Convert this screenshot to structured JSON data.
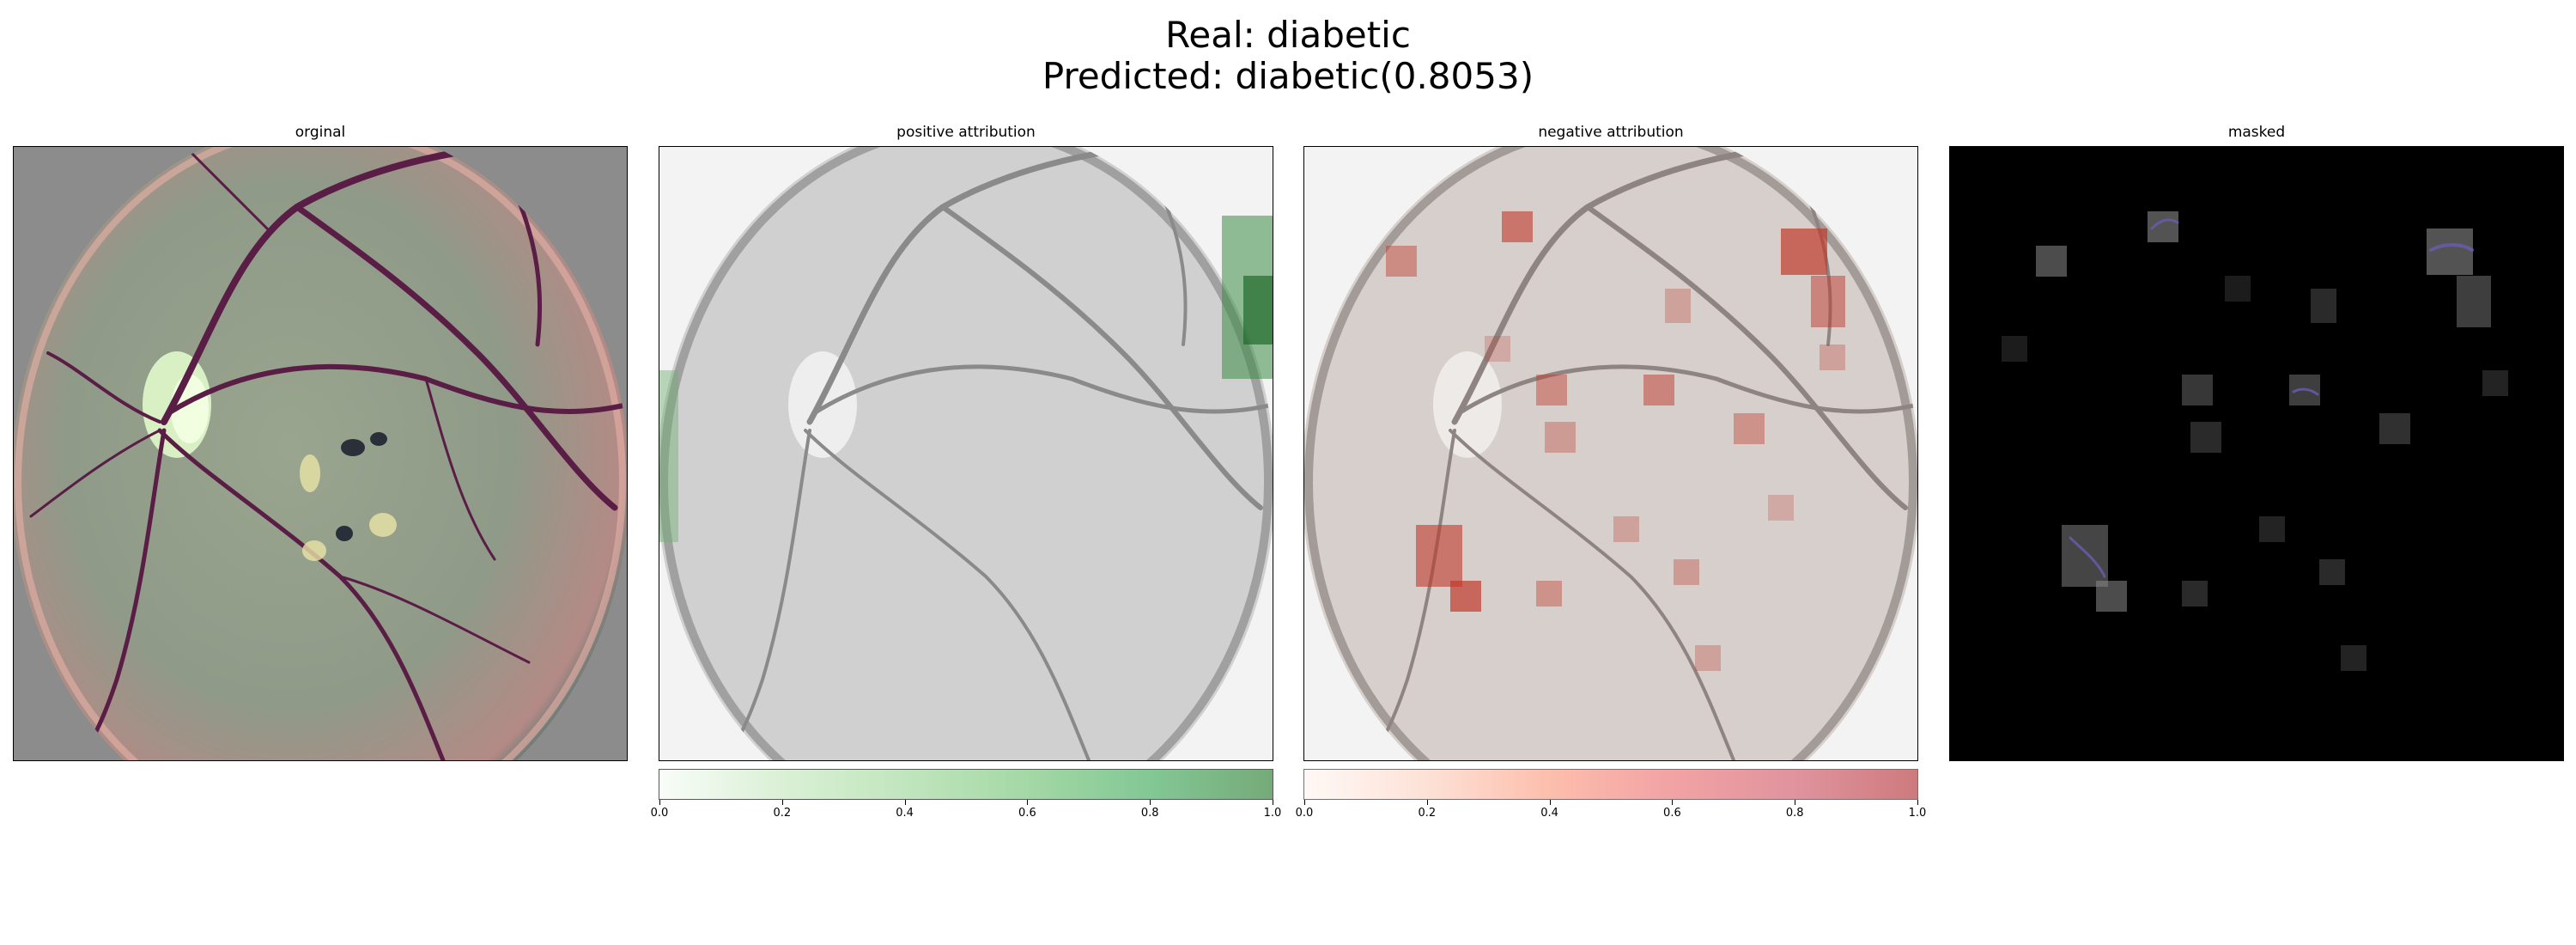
{
  "figure": {
    "title_line1": "Real: diabetic",
    "title_line2": "Predicted: diabetic(0.8053)"
  },
  "panels": [
    {
      "title": "orginal",
      "content": "color-enhanced fundus image"
    },
    {
      "title": "positive attribution",
      "content": "grayscale fundus with green overlay"
    },
    {
      "title": "negative attribution",
      "content": "grayscale fundus with red overlay"
    },
    {
      "title": "masked",
      "content": "fundus image masked to attribution patches on black"
    }
  ],
  "colorbars": {
    "positive": {
      "cmap": "Greens",
      "color_low": "#f7fcf5",
      "color_high": "#2e7d32",
      "ticks": [
        "0.0",
        "0.2",
        "0.4",
        "0.6",
        "0.8",
        "1.0"
      ]
    },
    "negative": {
      "cmap": "Reds",
      "color_low": "#fff5f0",
      "color_high": "#a50f15",
      "ticks": [
        "0.0",
        "0.2",
        "0.4",
        "0.6",
        "0.8",
        "1.0"
      ]
    }
  },
  "colors": {
    "fundus_bg": "#8a8a8a",
    "vessel": "#5a1d45",
    "gray_fundus": "#d2d2d2",
    "masked_bg": "#000000"
  }
}
